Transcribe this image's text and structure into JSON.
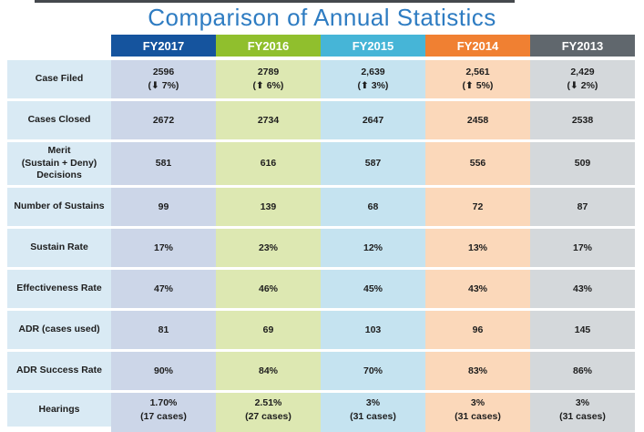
{
  "title": "Comparison of Annual Statistics",
  "colors": {
    "title_text": "#2e7cc2",
    "cell_text": "#1d1d1d",
    "label_column_tint": "#d9eaf4",
    "top_artifact": "#45494d"
  },
  "chart_data": {
    "type": "table",
    "title": "Comparison of Annual Statistics",
    "columns": [
      {
        "label": "FY2017",
        "header_color": "#15549e",
        "column_tint": "#ccd6e8"
      },
      {
        "label": "FY2016",
        "header_color": "#90bf2d",
        "column_tint": "#dde8b2"
      },
      {
        "label": "FY2015",
        "header_color": "#46b5d7",
        "column_tint": "#c5e3f0"
      },
      {
        "label": "FY2014",
        "header_color": "#f08032",
        "column_tint": "#fbd8ba"
      },
      {
        "label": "FY2013",
        "header_color": "#60676d",
        "column_tint": "#d4d8db"
      }
    ],
    "rows": [
      {
        "label": "Case Filed",
        "cells": [
          "2596\n(⬇ 7%)",
          "2789\n(⬆ 6%)",
          "2,639\n(⬆ 3%)",
          "2,561\n(⬆ 5%)",
          "2,429\n(⬇ 2%)"
        ]
      },
      {
        "label": "Cases Closed",
        "cells": [
          "2672",
          "2734",
          "2647",
          "2458",
          "2538"
        ]
      },
      {
        "label": "Merit\n(Sustain + Deny)\nDecisions",
        "cells": [
          "581",
          "616",
          "587",
          "556",
          "509"
        ]
      },
      {
        "label": "Number of Sustains",
        "cells": [
          "99",
          "139",
          "68",
          "72",
          "87"
        ]
      },
      {
        "label": "Sustain Rate",
        "cells": [
          "17%",
          "23%",
          "12%",
          "13%",
          "17%"
        ]
      },
      {
        "label": "Effectiveness Rate",
        "cells": [
          "47%",
          "46%",
          "45%",
          "43%",
          "43%"
        ]
      },
      {
        "label": "ADR (cases used)",
        "cells": [
          "81",
          "69",
          "103",
          "96",
          "145"
        ]
      },
      {
        "label": "ADR Success Rate",
        "cells": [
          "90%",
          "84%",
          "70%",
          "83%",
          "86%"
        ]
      },
      {
        "label": "Hearings",
        "cells": [
          "1.70%\n(17 cases)",
          "2.51%\n(27 cases)",
          "3%\n(31 cases)",
          "3%\n(31 cases)",
          "3%\n(31 cases)"
        ]
      }
    ]
  }
}
